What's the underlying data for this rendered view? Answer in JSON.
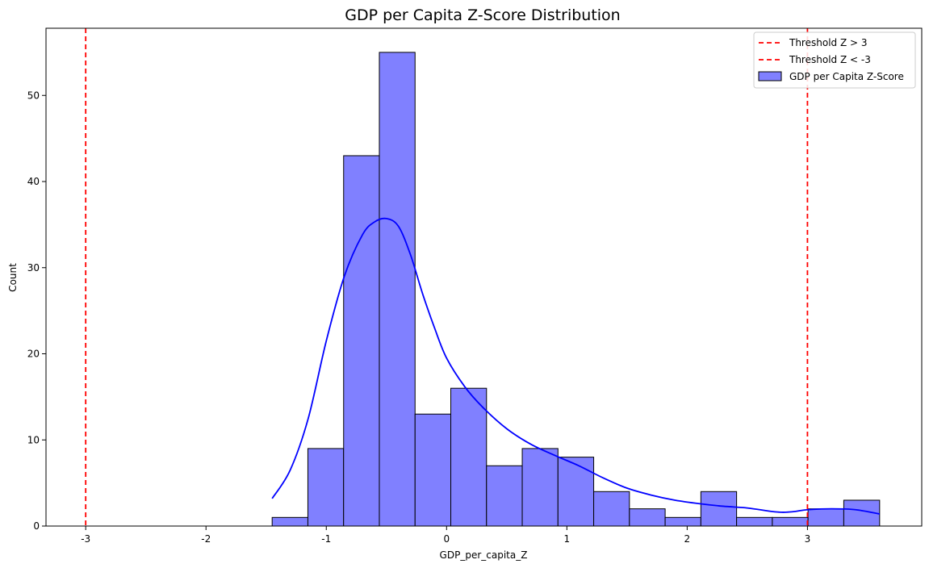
{
  "chart_data": {
    "type": "bar",
    "title": "GDP per Capita Z-Score Distribution",
    "xlabel": "GDP_per_capita_Z",
    "ylabel": "Count",
    "xlim": [
      -3.33,
      3.95
    ],
    "ylim": [
      0,
      57.8
    ],
    "xticks": [
      -3,
      -2,
      -1,
      0,
      1,
      2,
      3
    ],
    "xtick_labels": [
      "-3",
      "-2",
      "-1",
      "0",
      "1",
      "2",
      "3"
    ],
    "yticks": [
      0,
      10,
      20,
      30,
      40,
      50
    ],
    "ytick_labels": [
      "0",
      "10",
      "20",
      "30",
      "40",
      "50"
    ],
    "grid": false,
    "legend_position": "top-right",
    "colors": {
      "bar_fill": "#8080ff",
      "bar_edge": "#000000",
      "kde": "#0000ff",
      "threshold": "#ff0000"
    },
    "histogram": {
      "name": "GDP per Capita Z-Score",
      "bin_edges": [
        -1.45,
        -1.153,
        -0.856,
        -0.559,
        -0.262,
        0.035,
        0.332,
        0.629,
        0.926,
        1.223,
        1.52,
        1.817,
        2.114,
        2.411,
        2.708,
        3.005,
        3.302,
        3.6
      ],
      "counts": [
        1,
        9,
        43,
        55,
        13,
        16,
        7,
        9,
        8,
        4,
        2,
        1,
        4,
        1,
        1,
        2,
        3
      ]
    },
    "kde": {
      "x": [
        -1.45,
        -1.3,
        -1.15,
        -1.0,
        -0.85,
        -0.7,
        -0.6,
        -0.5,
        -0.4,
        -0.3,
        -0.2,
        -0.1,
        0.0,
        0.15,
        0.3,
        0.5,
        0.7,
        0.9,
        1.1,
        1.3,
        1.5,
        1.7,
        1.9,
        2.1,
        2.3,
        2.5,
        2.7,
        2.8,
        2.9,
        3.0,
        3.2,
        3.4,
        3.6
      ],
      "y": [
        3.2,
        6.5,
        12.5,
        21.5,
        29.0,
        33.8,
        35.3,
        35.7,
        34.8,
        31.5,
        27.0,
        23.0,
        19.5,
        16.2,
        13.8,
        11.3,
        9.5,
        8.2,
        7.0,
        5.6,
        4.4,
        3.6,
        3.0,
        2.6,
        2.3,
        2.1,
        1.7,
        1.6,
        1.7,
        1.9,
        2.0,
        1.9,
        1.4
      ]
    },
    "thresholds": [
      {
        "name": "Threshold Z > 3",
        "value": 3
      },
      {
        "name": "Threshold Z < -3",
        "value": -3
      }
    ],
    "legend": [
      "Threshold Z > 3",
      "Threshold Z < -3",
      "GDP per Capita Z-Score"
    ]
  }
}
